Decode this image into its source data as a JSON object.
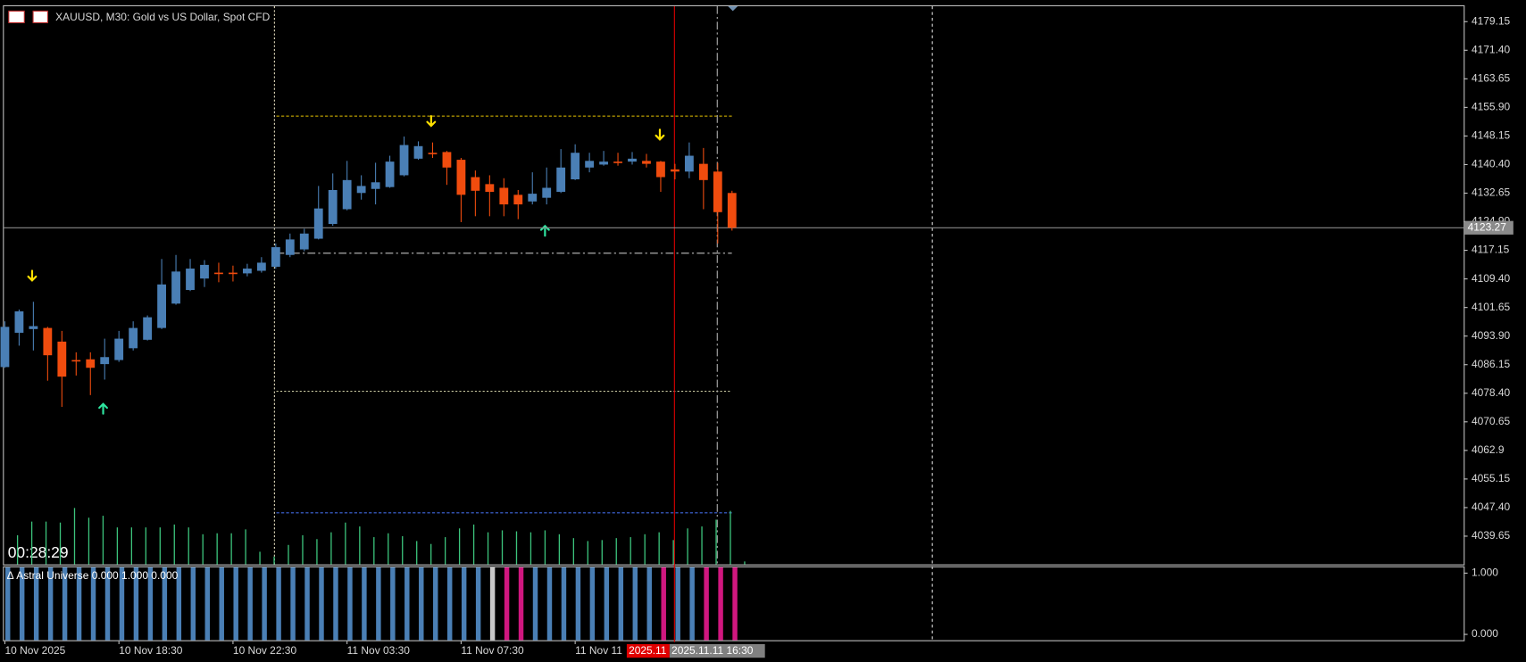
{
  "chart_data": {
    "type": "candlestick",
    "title": "XAUUSD, M30:  Gold vs US Dollar, Spot CFD",
    "timer": "00:28:29",
    "categories": [
      "10 Nov 2025",
      null,
      null,
      null,
      null,
      null,
      null,
      null,
      "10 Nov 18:30",
      null,
      null,
      null,
      null,
      null,
      null,
      null,
      "10 Nov 22:30",
      null,
      null,
      null,
      null,
      null,
      null,
      null,
      "11 Nov 03:30",
      null,
      null,
      null,
      null,
      null,
      null,
      null,
      "11 Nov 07:30",
      null,
      null,
      null,
      null,
      null,
      null,
      null,
      "11 Nov 11",
      null,
      null,
      null,
      null,
      null,
      null,
      null,
      null,
      null,
      null,
      null
    ],
    "open": [
      4085.5,
      4094.8,
      4095.8,
      4096.1,
      4092.4,
      4087.4,
      4087.6,
      4086.3,
      4087.4,
      4090.6,
      4092.9,
      4096.1,
      4102.7,
      4106.4,
      4109.5,
      4111.1,
      4111.1,
      4110.9,
      4111.6,
      4112.7,
      4115.9,
      4117.4,
      4120.3,
      4124.3,
      4128.3,
      4132.7,
      4133.8,
      4134.3,
      4137.5,
      4142.0,
      4143.6,
      4143.8,
      4141.7,
      4137.0,
      4135.1,
      4134.1,
      4132.2,
      4130.4,
      4131.4,
      4133.0,
      4136.4,
      4139.6,
      4140.4,
      4141.2,
      4141.2,
      4141.4,
      4141.2,
      4139.1,
      4138.5,
      4140.6,
      4138.5,
      4132.7
    ],
    "high": [
      4097.9,
      4101.1,
      4103.2,
      4096.4,
      4095.3,
      4089.5,
      4089.5,
      4093.2,
      4095.3,
      4097.9,
      4099.5,
      4114.8,
      4115.9,
      4114.8,
      4114.5,
      4113.8,
      4113.0,
      4113.5,
      4115.3,
      4119.0,
      4121.7,
      4123.0,
      4134.6,
      4138.0,
      4141.4,
      4137.5,
      4140.9,
      4142.8,
      4148.0,
      4146.7,
      4146.4,
      4144.1,
      4142.2,
      4138.8,
      4137.5,
      4136.7,
      4133.5,
      4138.3,
      4139.6,
      4144.6,
      4145.9,
      4143.6,
      4144.1,
      4143.6,
      4143.8,
      4143.3,
      4141.4,
      4140.6,
      4146.4,
      4144.9,
      4140.9,
      4133.3
    ],
    "low": [
      4085.3,
      4091.3,
      4090.0,
      4081.8,
      4074.7,
      4083.2,
      4077.9,
      4082.1,
      4086.9,
      4090.0,
      4092.7,
      4095.8,
      4102.4,
      4106.1,
      4107.2,
      4108.5,
      4108.7,
      4110.1,
      4111.1,
      4112.2,
      4115.3,
      4116.9,
      4120.1,
      4123.8,
      4128.0,
      4130.9,
      4129.6,
      4134.1,
      4137.2,
      4141.7,
      4142.2,
      4134.9,
      4124.8,
      4126.4,
      4126.4,
      4126.4,
      4125.6,
      4129.6,
      4129.6,
      4132.7,
      4136.2,
      4138.3,
      4140.1,
      4140.1,
      4140.4,
      4139.6,
      4133.0,
      4136.4,
      4136.7,
      4128.3,
      4119.0,
      4122.5
    ],
    "close": [
      4096.4,
      4100.6,
      4096.6,
      4088.7,
      4082.9,
      4087.1,
      4085.3,
      4088.2,
      4093.2,
      4096.1,
      4099.0,
      4107.9,
      4111.4,
      4112.2,
      4113.2,
      4110.9,
      4110.9,
      4112.2,
      4113.8,
      4118.0,
      4120.1,
      4121.7,
      4128.5,
      4133.5,
      4136.2,
      4134.6,
      4135.6,
      4141.2,
      4145.7,
      4145.4,
      4143.3,
      4139.6,
      4132.2,
      4133.3,
      4133.0,
      4129.6,
      4129.6,
      4132.5,
      4134.1,
      4139.6,
      4143.6,
      4141.4,
      4141.2,
      4141.1,
      4142.0,
      4140.6,
      4137.0,
      4138.5,
      4142.8,
      4136.2,
      4127.5,
      4123.27
    ],
    "up_color": "#4a7fb5",
    "down_color": "#f04c0e",
    "ylim": [
      4032.0,
      4183.6
    ],
    "yticks": [
      4179.15,
      {
        "value": 4171.4,
        "label": "4171.40"
      },
      4163.65,
      {
        "value": 4155.9,
        "label": "4155.90"
      },
      4148.15,
      {
        "value": 4140.4,
        "label": "4140.40"
      },
      4132.65,
      {
        "value": 4124.9,
        "label": "4124.90"
      },
      4117.15,
      {
        "value": 4109.4,
        "label": "4109.40"
      },
      4101.65,
      {
        "value": 4093.9,
        "label": "4093.90"
      },
      4086.15,
      {
        "value": 4078.4,
        "label": "4078.40"
      },
      4070.65,
      4062.9,
      4055.15,
      {
        "value": 4047.4,
        "label": "4047.40"
      },
      4039.65
    ],
    "current_price": 4123.27,
    "volumes": [
      30,
      44,
      44,
      43,
      58,
      48,
      50,
      38,
      38,
      38,
      38,
      41,
      38,
      31,
      32,
      32,
      36,
      13,
      8,
      20,
      30,
      26,
      33,
      43,
      39,
      28,
      32,
      29,
      24,
      21,
      28,
      37,
      41,
      33,
      35,
      34,
      33,
      35,
      31,
      27,
      24,
      25,
      27,
      28,
      31,
      33,
      25,
      37,
      39,
      46,
      55,
      3
    ],
    "volume_color": "#3cc47c",
    "indicator": {
      "label": "Δ Astral Universe 0.000 1.000 0.000",
      "ylim": [
        0,
        1
      ],
      "yticks": [
        {
          "value": 1,
          "label": "1.000"
        },
        {
          "value": 0,
          "label": "0.000"
        }
      ],
      "values": [
        1,
        1,
        1,
        1,
        1,
        1,
        1,
        1,
        1,
        1,
        1,
        1,
        1,
        1,
        1,
        1,
        1,
        1,
        1,
        1,
        1,
        1,
        1,
        1,
        1,
        1,
        1,
        1,
        1,
        1,
        1,
        1,
        1,
        1,
        1,
        1,
        1,
        1,
        1,
        1,
        1,
        1,
        1,
        1,
        1,
        1,
        1,
        1,
        1,
        1,
        1,
        1
      ],
      "colors": [
        "#4a7fb5",
        "#4a7fb5",
        "#4a7fb5",
        "#4a7fb5",
        "#4a7fb5",
        "#4a7fb5",
        "#4a7fb5",
        "#4a7fb5",
        "#4a7fb5",
        "#4a7fb5",
        "#4a7fb5",
        "#4a7fb5",
        "#4a7fb5",
        "#4a7fb5",
        "#4a7fb5",
        "#4a7fb5",
        "#4a7fb5",
        "#4a7fb5",
        "#4a7fb5",
        "#4a7fb5",
        "#4a7fb5",
        "#4a7fb5",
        "#4a7fb5",
        "#4a7fb5",
        "#4a7fb5",
        "#4a7fb5",
        "#4a7fb5",
        "#4a7fb5",
        "#4a7fb5",
        "#4a7fb5",
        "#4a7fb5",
        "#4a7fb5",
        "#4a7fb5",
        "#4a7fb5",
        "#c8c8c8",
        "#d0177f",
        "#d0177f",
        "#4a7fb5",
        "#4a7fb5",
        "#4a7fb5",
        "#4a7fb5",
        "#4a7fb5",
        "#4a7fb5",
        "#4a7fb5",
        "#4a7fb5",
        "#4a7fb5",
        "#d0177f",
        "#4a7fb5",
        "#4a7fb5",
        "#d0177f",
        "#d0177f",
        "#d0177f"
      ]
    },
    "crosshair_labels": [
      "2025.11",
      "2025.11.11 16:30"
    ]
  }
}
